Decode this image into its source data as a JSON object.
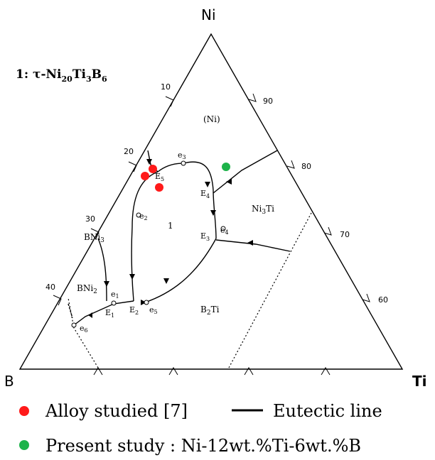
{
  "title": {
    "prefix": "1: τ-Ni",
    "sub1": "20",
    "mid1": "Ti",
    "sub2": "3",
    "mid2": "B",
    "sub3": "6"
  },
  "vertices": {
    "top": "Ni",
    "left": "B",
    "right": "Ti"
  },
  "right_axis_ticks": [
    "90",
    "80",
    "70",
    "60"
  ],
  "left_axis_ticks": [
    "10",
    "20",
    "30",
    "40"
  ],
  "phases": {
    "ni": "(Ni)",
    "ni3ti_main": "Ni",
    "ni3ti_sub": "3",
    "ni3ti_tail": "Ti",
    "tau": "1",
    "bni3_main": "BNi",
    "bni3_sub": "3",
    "bni2_main": "BNi",
    "bni2_sub": "2",
    "b2ti_main": "B",
    "b2ti_sub": "2",
    "b2ti_tail": "Ti"
  },
  "points": {
    "e1": "e",
    "e1_sub": "1",
    "e2": "e",
    "e2_sub": "2",
    "e3": "e",
    "e3_sub": "3",
    "e4": "e",
    "e4_sub": "4",
    "e5": "e",
    "e5_sub": "5",
    "e6": "e",
    "e6_sub": "6",
    "E1": "E",
    "E1_sub": "1",
    "E2": "E",
    "E2_sub": "2",
    "E3": "E",
    "E3_sub": "3",
    "E4": "E",
    "E4_sub": "4",
    "E5": "E",
    "E5_sub": "5"
  },
  "legend": {
    "alloy_label": "Alloy studied [7]",
    "eutectic_label": "Eutectic line",
    "present_label": "Present study : Ni-12wt.%Ti-6wt.%B"
  },
  "colors": {
    "red": "#ff1a1a",
    "green": "#1db34a",
    "line": "#000000"
  }
}
